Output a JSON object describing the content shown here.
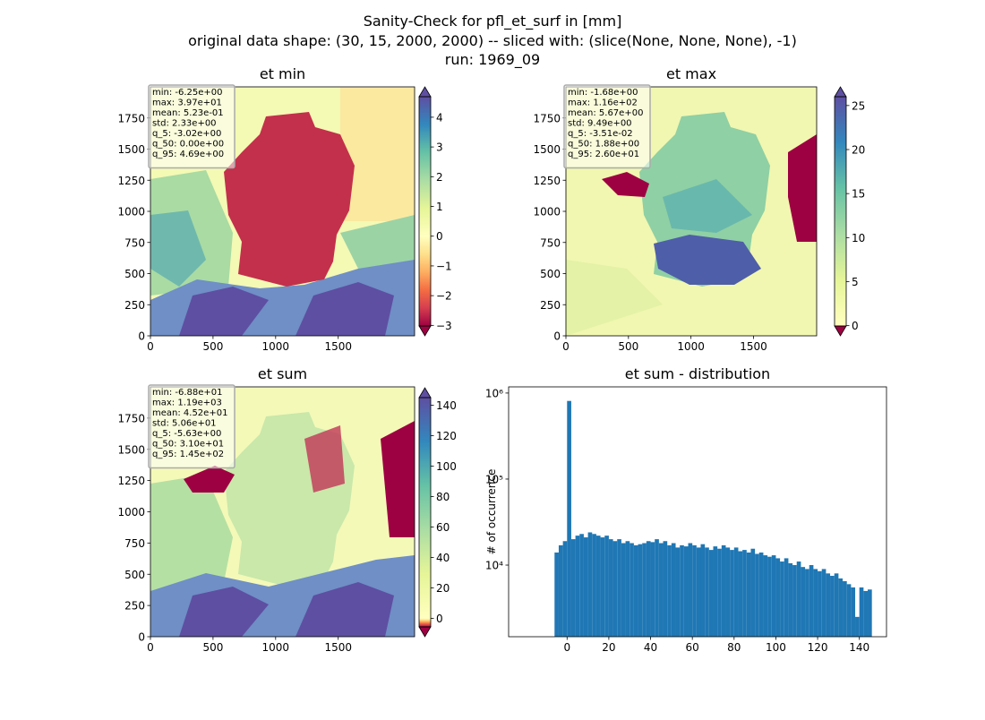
{
  "title": [
    "Sanity-Check for pfl_et_surf in [mm]",
    "original data shape: (30, 15, 2000, 2000) -- sliced with: (slice(None, None, None), -1)",
    "run: 1969_09"
  ],
  "chart_data": [
    {
      "type": "heatmap",
      "title": "et min",
      "xlim": [
        0,
        2110
      ],
      "ylim": [
        0,
        2000
      ],
      "xticks": [
        0,
        500,
        1000,
        1500
      ],
      "yticks": [
        0,
        250,
        500,
        750,
        1000,
        1250,
        1500,
        1750
      ],
      "clim": [
        -3.02,
        4.69
      ],
      "vcenter": 0,
      "extend": "both",
      "colormap": [
        "#9e0142",
        "#d53e4f",
        "#f46d43",
        "#fdae61",
        "#fee08b",
        "#ffffbf",
        "#e6f598",
        "#abdda4",
        "#66c2a5",
        "#3288bd",
        "#5e4fa2"
      ],
      "cticks": [
        {
          "value": -3,
          "label": "−3"
        },
        {
          "value": -2,
          "label": "−2"
        },
        {
          "value": -1,
          "label": "−1"
        },
        0,
        1,
        2,
        3,
        4
      ],
      "stats": [
        "min: -6.25e+00",
        "max: 3.97e+01",
        "mean: 5.23e-01",
        "std: 2.33e+00",
        "q_5: -3.02e+00",
        "q_50: 0.00e+00",
        "q_95: 4.69e+00"
      ]
    },
    {
      "type": "heatmap",
      "title": "et max",
      "xlim": [
        0,
        2005
      ],
      "ylim": [
        0,
        2000
      ],
      "xticks": [
        0,
        500,
        1000,
        1500
      ],
      "yticks": [
        0,
        250,
        500,
        750,
        1000,
        1250,
        1500,
        1750
      ],
      "clim": [
        -0.0351,
        26.0
      ],
      "vcenter": 0,
      "extend": "both",
      "colormap": [
        "#9e0142",
        "#d53e4f",
        "#f46d43",
        "#fdae61",
        "#fee08b",
        "#ffffbf",
        "#e6f598",
        "#abdda4",
        "#66c2a5",
        "#3288bd",
        "#5e4fa2"
      ],
      "cticks": [
        0,
        5,
        10,
        15,
        20,
        25
      ],
      "stats": [
        "min: -1.68e+00",
        "max: 1.16e+02",
        "mean: 5.67e+00",
        "std: 9.49e+00",
        "q_5: -3.51e-02",
        "q_50: 1.88e+00",
        "q_95: 2.60e+01"
      ]
    },
    {
      "type": "heatmap",
      "title": "et sum",
      "xlim": [
        0,
        2110
      ],
      "ylim": [
        0,
        2000
      ],
      "xticks": [
        0,
        500,
        1000,
        1500
      ],
      "yticks": [
        0,
        250,
        500,
        750,
        1000,
        1250,
        1500,
        1750
      ],
      "clim": [
        -5.63,
        145
      ],
      "vcenter": 0,
      "extend": "both",
      "colormap": [
        "#9e0142",
        "#d53e4f",
        "#f46d43",
        "#fdae61",
        "#fee08b",
        "#ffffbf",
        "#e6f598",
        "#abdda4",
        "#66c2a5",
        "#3288bd",
        "#5e4fa2"
      ],
      "cticks": [
        0,
        20,
        40,
        60,
        80,
        100,
        120,
        140
      ],
      "stats": [
        "min: -6.88e+01",
        "max: 1.19e+03",
        "mean: 4.52e+01",
        "std: 5.06e+01",
        "q_5: -5.63e+00",
        "q_50: 3.10e+01",
        "q_95: 1.45e+02"
      ]
    },
    {
      "type": "histogram",
      "title": "et sum - distribution",
      "ylabel": "# of occurrence",
      "color": "#1f77b4",
      "log_y": true,
      "xlim": [
        -28,
        153
      ],
      "ylim": [
        1470,
        1180000
      ],
      "xticks": [
        0,
        20,
        40,
        60,
        80,
        100,
        120,
        140
      ],
      "yticks": [
        {
          "value": 10000,
          "label": "10⁴"
        },
        {
          "value": 100000,
          "label": "10⁵"
        },
        {
          "value": 1000000,
          "label": "10⁶"
        }
      ],
      "bins": [
        -6,
        -4,
        -2,
        0,
        2,
        4,
        6,
        8,
        10,
        12,
        14,
        16,
        18,
        20,
        22,
        24,
        26,
        28,
        30,
        32,
        34,
        36,
        38,
        40,
        42,
        44,
        46,
        48,
        50,
        52,
        54,
        56,
        58,
        60,
        62,
        64,
        66,
        68,
        70,
        72,
        74,
        76,
        78,
        80,
        82,
        84,
        86,
        88,
        90,
        92,
        94,
        96,
        98,
        100,
        102,
        104,
        106,
        108,
        110,
        112,
        114,
        116,
        118,
        120,
        122,
        124,
        126,
        128,
        130,
        132,
        134,
        136,
        138,
        140,
        142,
        144,
        146
      ],
      "counts": [
        14000,
        17000,
        19000,
        810000,
        20000,
        22000,
        23000,
        21000,
        24000,
        23000,
        22000,
        21000,
        22000,
        20000,
        19000,
        20000,
        18000,
        19000,
        18000,
        17000,
        17500,
        18000,
        19000,
        18500,
        20000,
        18000,
        19000,
        17000,
        18000,
        16000,
        17000,
        16500,
        18000,
        17000,
        16000,
        17500,
        16000,
        15000,
        16500,
        15500,
        17000,
        16000,
        15000,
        16000,
        14500,
        15000,
        14000,
        15500,
        13500,
        14000,
        13000,
        12500,
        13000,
        12000,
        11000,
        12000,
        10500,
        10000,
        11000,
        9500,
        9000,
        10000,
        9000,
        8500,
        9000,
        8000,
        7500,
        8000,
        7000,
        6500,
        6000,
        5500,
        2500,
        5500,
        5000,
        5200
      ]
    }
  ]
}
